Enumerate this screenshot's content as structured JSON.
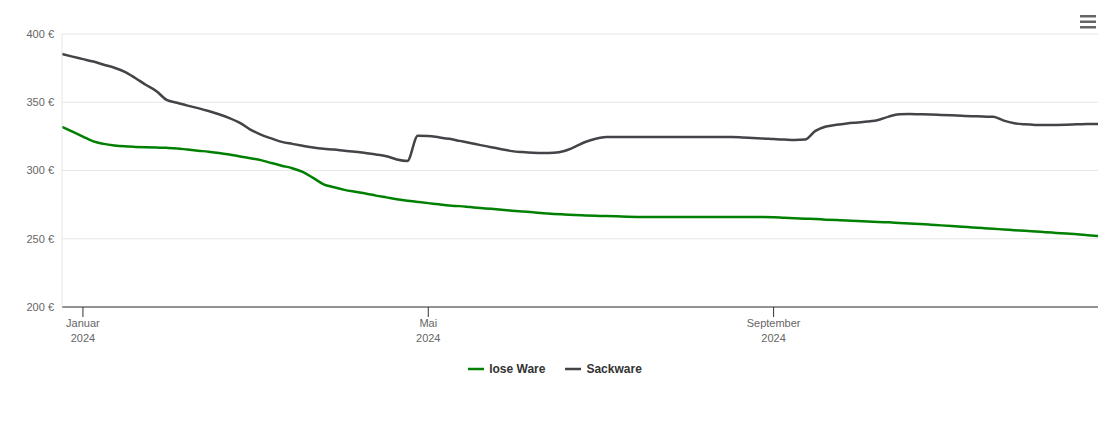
{
  "chart_data": {
    "type": "line",
    "categories": [
      null,
      null,
      "Januar 2024",
      null,
      null,
      null,
      null,
      null,
      null,
      null,
      null,
      null,
      null,
      null,
      null,
      null,
      null,
      null,
      null,
      null,
      null,
      null,
      null,
      null,
      null,
      null,
      null,
      null,
      null,
      null,
      null,
      null,
      null,
      null,
      null,
      "Mai 2024",
      null,
      null,
      null,
      null,
      null,
      null,
      null,
      null,
      null,
      null,
      null,
      null,
      null,
      null,
      null,
      null,
      null,
      null,
      null,
      null,
      null,
      null,
      null,
      null,
      null,
      null,
      null,
      null,
      null,
      null,
      null,
      null,
      "September 2024",
      null,
      null,
      null,
      null,
      null,
      null,
      null,
      null,
      null,
      null,
      null,
      null,
      null,
      null,
      null,
      null,
      null,
      null,
      null,
      null,
      null,
      null,
      null,
      null,
      null,
      null,
      null,
      null,
      null,
      null,
      null
    ],
    "series": [
      {
        "name": "lose Ware",
        "color": "#008000",
        "values": [
          331.9,
          328.4,
          324.8,
          321.3,
          319.5,
          318.4,
          317.7,
          317.3,
          317.0,
          316.8,
          316.6,
          316.2,
          315.3,
          314.5,
          313.8,
          312.9,
          311.7,
          310.3,
          309.0,
          307.6,
          305.5,
          303.5,
          301.7,
          299.0,
          294.6,
          289.9,
          287.7,
          285.8,
          284.4,
          283.1,
          281.6,
          280.3,
          279.0,
          277.9,
          277.0,
          276.1,
          275.2,
          274.3,
          273.9,
          273.2,
          272.5,
          271.9,
          271.2,
          270.6,
          270.0,
          269.4,
          268.7,
          268.2,
          267.8,
          267.4,
          267.1,
          266.8,
          266.6,
          266.4,
          266.2,
          266.0,
          265.9,
          265.9,
          265.9,
          265.9,
          265.9,
          265.9,
          265.9,
          265.9,
          265.9,
          265.9,
          265.9,
          265.9,
          265.8,
          265.4,
          265.1,
          264.7,
          264.4,
          264.0,
          263.7,
          263.4,
          263.0,
          262.7,
          262.3,
          262.0,
          261.6,
          261.2,
          260.8,
          260.3,
          259.8,
          259.3,
          258.8,
          258.3,
          257.8,
          257.3,
          256.8,
          256.3,
          255.8,
          255.3,
          254.8,
          254.3,
          253.8,
          253.3,
          252.6,
          252.0
        ]
      },
      {
        "name": "Sackware",
        "color": "#434348",
        "values": [
          385.3,
          383.4,
          381.6,
          379.8,
          377.5,
          375.3,
          372.3,
          367.8,
          362.8,
          358.3,
          351.7,
          349.6,
          347.5,
          345.7,
          343.6,
          341.2,
          338.4,
          334.9,
          330.0,
          326.3,
          323.5,
          321.0,
          319.5,
          318.1,
          316.8,
          315.9,
          315.4,
          314.5,
          313.8,
          312.8,
          311.8,
          310.5,
          308.1,
          307.0,
          325.5,
          325.3,
          324.3,
          323.2,
          321.7,
          320.2,
          318.6,
          317.1,
          315.6,
          314.2,
          313.5,
          313.0,
          312.8,
          313.0,
          314.3,
          317.3,
          320.9,
          323.3,
          324.5,
          324.5,
          324.5,
          324.5,
          324.5,
          324.5,
          324.5,
          324.5,
          324.5,
          324.5,
          324.5,
          324.5,
          324.5,
          324.2,
          323.8,
          323.5,
          323.0,
          322.7,
          322.4,
          322.7,
          329.0,
          332.2,
          333.5,
          334.5,
          335.2,
          335.9,
          337.0,
          339.5,
          341.2,
          341.4,
          341.2,
          341.0,
          340.7,
          340.4,
          340.1,
          339.8,
          339.5,
          339.3,
          336.5,
          334.6,
          333.8,
          333.4,
          333.3,
          333.4,
          333.6,
          333.8,
          334.0,
          334.1
        ]
      }
    ],
    "ylim": [
      200,
      400
    ],
    "yticks": [
      {
        "value": 200,
        "label": "200 €"
      },
      {
        "value": 250,
        "label": "250 €"
      },
      {
        "value": 300,
        "label": "300 €"
      },
      {
        "value": 350,
        "label": "350 €"
      },
      {
        "value": 400,
        "label": "400 €"
      }
    ],
    "grid": true,
    "legend": "bottom"
  }
}
